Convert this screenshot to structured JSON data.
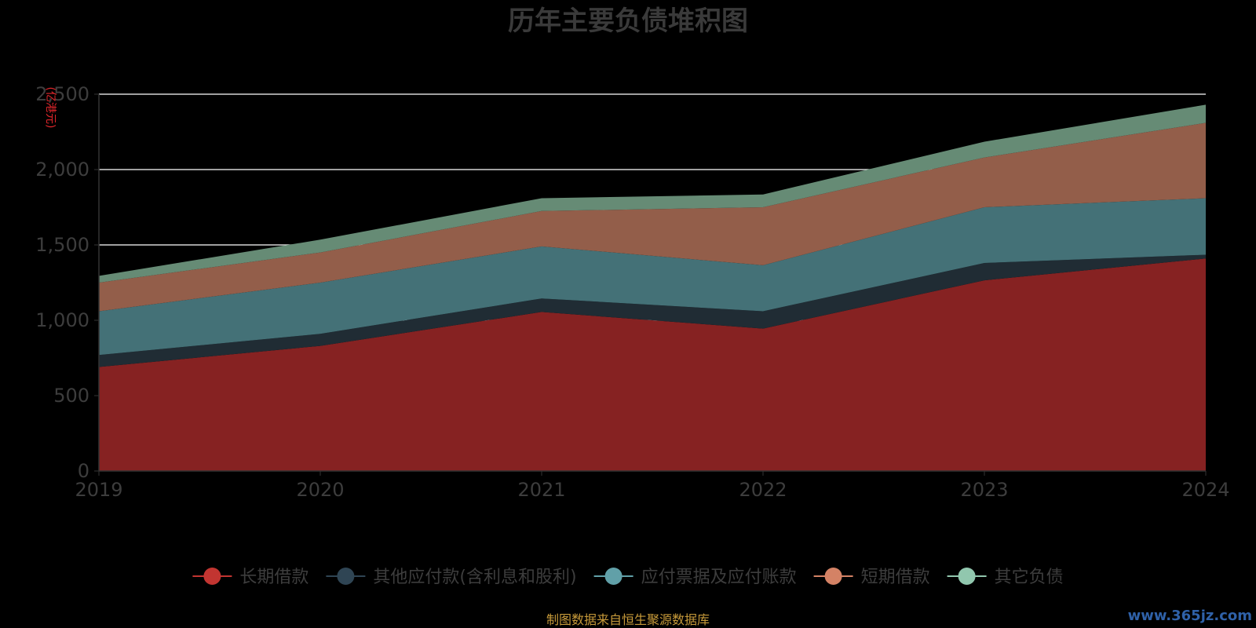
{
  "chart_data": {
    "type": "area",
    "stacked": true,
    "title": "历年主要负债堆积图",
    "y_unit_label": "(亿港元)",
    "categories": [
      "2019",
      "2020",
      "2021",
      "2022",
      "2023",
      "2024"
    ],
    "ylim": [
      0,
      2500
    ],
    "yticks": [
      {
        "value": 0,
        "label": "0"
      },
      {
        "value": 500,
        "label": "500"
      },
      {
        "value": 1000,
        "label": "1,000"
      },
      {
        "value": 1500,
        "label": "1,500"
      },
      {
        "value": 2000,
        "label": "2,000"
      },
      {
        "value": 2500,
        "label": "2,500"
      }
    ],
    "grid": true,
    "legend_position": "bottom",
    "series": [
      {
        "name": "长期借款",
        "color": "#c23531",
        "fill": "#862222",
        "values": [
          690,
          830,
          1055,
          945,
          1265,
          1410
        ]
      },
      {
        "name": "其他应付款(含利息和股利)",
        "color": "#2f4554",
        "fill": "#202c34",
        "values": [
          80,
          80,
          90,
          115,
          115,
          25
        ]
      },
      {
        "name": "应付票据及应付账款",
        "color": "#61a0a8",
        "fill": "#447177",
        "values": [
          290,
          340,
          345,
          305,
          370,
          375
        ]
      },
      {
        "name": "短期借款",
        "color": "#d48265",
        "fill": "#935e4a",
        "values": [
          190,
          200,
          235,
          385,
          330,
          500
        ]
      },
      {
        "name": "其它负债",
        "color": "#91c7ae",
        "fill": "#668b75",
        "values": [
          45,
          85,
          85,
          85,
          105,
          120
        ]
      }
    ],
    "source_note": "制图数据来自恒生聚源数据库",
    "watermark": "www.365jz.com"
  }
}
